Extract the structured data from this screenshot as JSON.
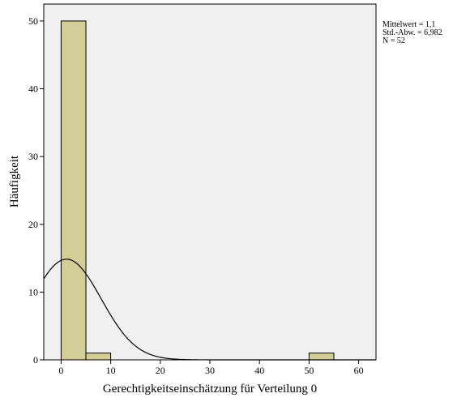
{
  "chart_data": {
    "type": "histogram",
    "xlabel": "Gerechtigkeitseinschätzung für Verteilung 0",
    "ylabel": "Häufigkeit",
    "xlim": [
      -3.5,
      63.5
    ],
    "ylim": [
      0,
      52.5
    ],
    "xticks": [
      0,
      10,
      20,
      30,
      40,
      50,
      60
    ],
    "yticks": [
      0,
      10,
      20,
      30,
      40,
      50
    ],
    "bin_width": 5,
    "bins": [
      {
        "x0": 0,
        "x1": 5,
        "count": 50
      },
      {
        "x0": 5,
        "x1": 10,
        "count": 1
      },
      {
        "x0": 50,
        "x1": 55,
        "count": 1
      }
    ],
    "normal_curve": {
      "mean": 1.1,
      "sd": 6.982,
      "n": 52
    },
    "grid": false,
    "legend": "none",
    "colors": {
      "plot_background": "#f0f0f0",
      "bar_fill": "#d3ce97",
      "bar_stroke": "#000000",
      "curve": "#000000"
    }
  },
  "stats": {
    "mean_label": "Mittelwert = 1,1",
    "sd_label": "Std.-Abw. = 6,982",
    "n_label": "N = 52"
  }
}
